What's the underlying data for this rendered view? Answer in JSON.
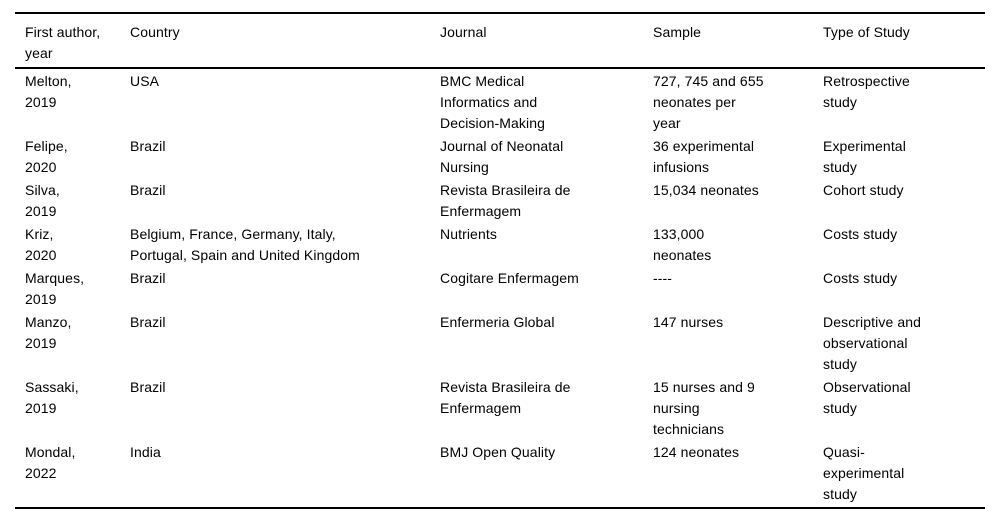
{
  "table": {
    "columns": [
      "First author,\nyear",
      "Country",
      "Journal",
      "Sample",
      "Type of Study"
    ],
    "rows": [
      {
        "author": "Melton,\n2019",
        "country": "USA",
        "journal": "BMC Medical\nInformatics and\nDecision-Making",
        "sample": "727, 745 and 655\nneonates per\nyear",
        "type": "Retrospective\nstudy"
      },
      {
        "author": "Felipe,\n2020",
        "country": "Brazil",
        "journal": "Journal of Neonatal\nNursing",
        "sample": "36 experimental\ninfusions",
        "type": "Experimental\nstudy"
      },
      {
        "author": "Silva,\n2019",
        "country": "Brazil",
        "journal": "Revista Brasileira de\nEnfermagem",
        "sample": "15,034 neonates",
        "type": "Cohort study"
      },
      {
        "author": "Kriz,\n2020",
        "country": "Belgium, France, Germany, Italy,\nPortugal, Spain and United Kingdom",
        "journal": "Nutrients",
        "sample": "133,000\nneonates",
        "type": "Costs study"
      },
      {
        "author": "Marques,\n2019",
        "country": "Brazil",
        "journal": "Cogitare Enfermagem",
        "sample": "----",
        "type": "Costs study"
      },
      {
        "author": "Manzo,\n2019",
        "country": "Brazil",
        "journal": "Enfermeria Global",
        "sample": "147 nurses",
        "type": "Descriptive and\nobservational\nstudy"
      },
      {
        "author": "Sassaki,\n2019",
        "country": "Brazil",
        "journal": "Revista Brasileira de\nEnfermagem",
        "sample": "15 nurses and 9\nnursing\ntechnicians",
        "type": "Observational\nstudy"
      },
      {
        "author": "Mondal,\n2022",
        "country": "India",
        "journal": "BMJ Open Quality",
        "sample": "124 neonates",
        "type": "Quasi-\nexperimental\nstudy"
      }
    ]
  }
}
